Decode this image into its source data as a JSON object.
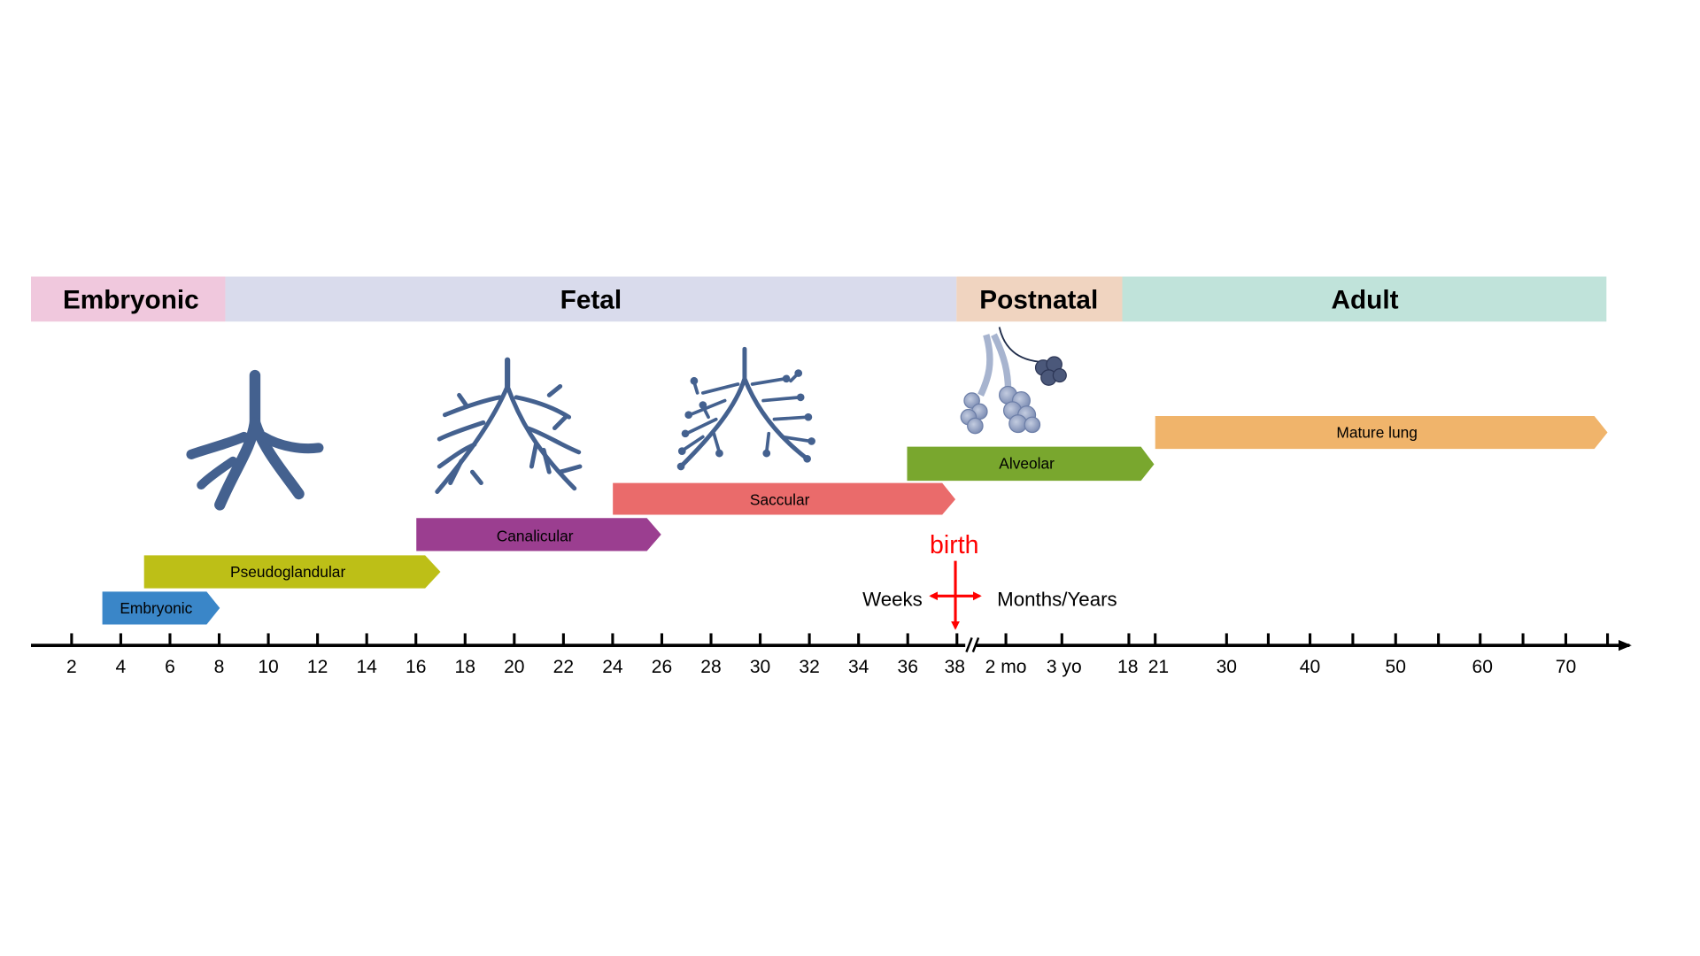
{
  "phases": [
    {
      "label": "Embryonic",
      "color": "#f0c8dd"
    },
    {
      "label": "Fetal",
      "color": "#d9dbec"
    },
    {
      "label": "Postnatal",
      "color": "#f0d4c0"
    },
    {
      "label": "Adult",
      "color": "#c0e3da"
    }
  ],
  "stages": [
    {
      "label": "Embryonic",
      "color": "#3a86c8",
      "start": "3 weeks",
      "end": "8 weeks"
    },
    {
      "label": "Pseudoglandular",
      "color": "#bdbf17",
      "start": "5 weeks",
      "end": "17 weeks"
    },
    {
      "label": "Canalicular",
      "color": "#9b3e90",
      "start": "16 weeks",
      "end": "26 weeks"
    },
    {
      "label": "Saccular",
      "color": "#ea6b6b",
      "start": "24 weeks",
      "end": "38 weeks"
    },
    {
      "label": "Alveolar",
      "color": "#79a72e",
      "start": "36 weeks",
      "end": "21 years"
    },
    {
      "label": "Mature lung",
      "color": "#f0b46b",
      "start": "21 years",
      "end": "75 years"
    }
  ],
  "axis": {
    "weeks_ticks": [
      "2",
      "4",
      "6",
      "8",
      "10",
      "12",
      "14",
      "16",
      "18",
      "20",
      "22",
      "24",
      "26",
      "28",
      "30",
      "32",
      "34",
      "36",
      "38"
    ],
    "postnatal_ticks": [
      "2 mo",
      "3 yo",
      "18",
      "21",
      "30",
      "40",
      "50",
      "60",
      "70"
    ],
    "left_label": "Weeks",
    "right_label": "Months/Years",
    "birth_label": "birth",
    "birth_color": "#ff0000"
  },
  "illustrations": [
    "pseudoglandular-lung-icon",
    "canalicular-lung-icon",
    "saccular-lung-icon",
    "alveolar-lung-icon"
  ]
}
